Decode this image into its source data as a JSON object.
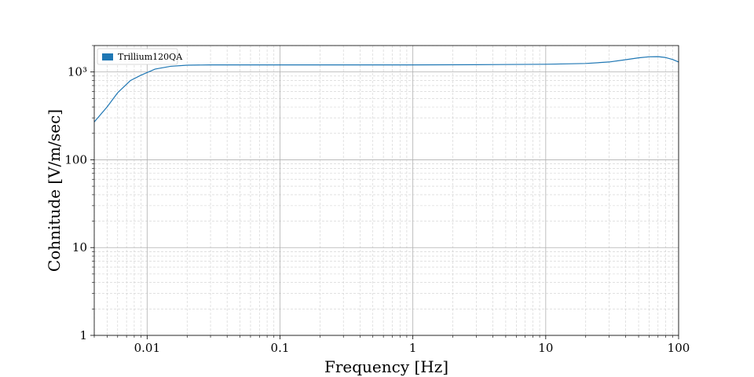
{
  "chart_data": {
    "type": "line",
    "xlabel": "Frequency [Hz]",
    "ylabel": "Cohnitude [V/m/sec]",
    "xscale": "log",
    "yscale": "log",
    "xlim": [
      0.004,
      100
    ],
    "ylim": [
      1,
      2000
    ],
    "grid": true,
    "legend_position": "top-left",
    "x_ticks": [
      {
        "value": 0.01,
        "label": "0.01"
      },
      {
        "value": 0.1,
        "label": "0.1"
      },
      {
        "value": 1,
        "label": "1"
      },
      {
        "value": 10,
        "label": "10"
      },
      {
        "value": 100,
        "label": "100"
      }
    ],
    "y_ticks": [
      {
        "value": 1,
        "label": "1"
      },
      {
        "value": 10,
        "label": "10"
      },
      {
        "value": 100,
        "label": "100"
      },
      {
        "value": 1000,
        "label": "10³"
      }
    ],
    "series": [
      {
        "name": "Trillium120QA",
        "color": "#1f77b4",
        "x": [
          0.004,
          0.005,
          0.006,
          0.0075,
          0.009,
          0.0115,
          0.015,
          0.02,
          0.03,
          0.05,
          0.1,
          0.3,
          1,
          3,
          10,
          20,
          30,
          40,
          50,
          60,
          70,
          80,
          90,
          100
        ],
        "y": [
          270,
          400,
          580,
          800,
          920,
          1080,
          1160,
          1195,
          1205,
          1205,
          1205,
          1205,
          1205,
          1210,
          1225,
          1250,
          1300,
          1380,
          1450,
          1490,
          1495,
          1460,
          1390,
          1300
        ]
      }
    ]
  }
}
